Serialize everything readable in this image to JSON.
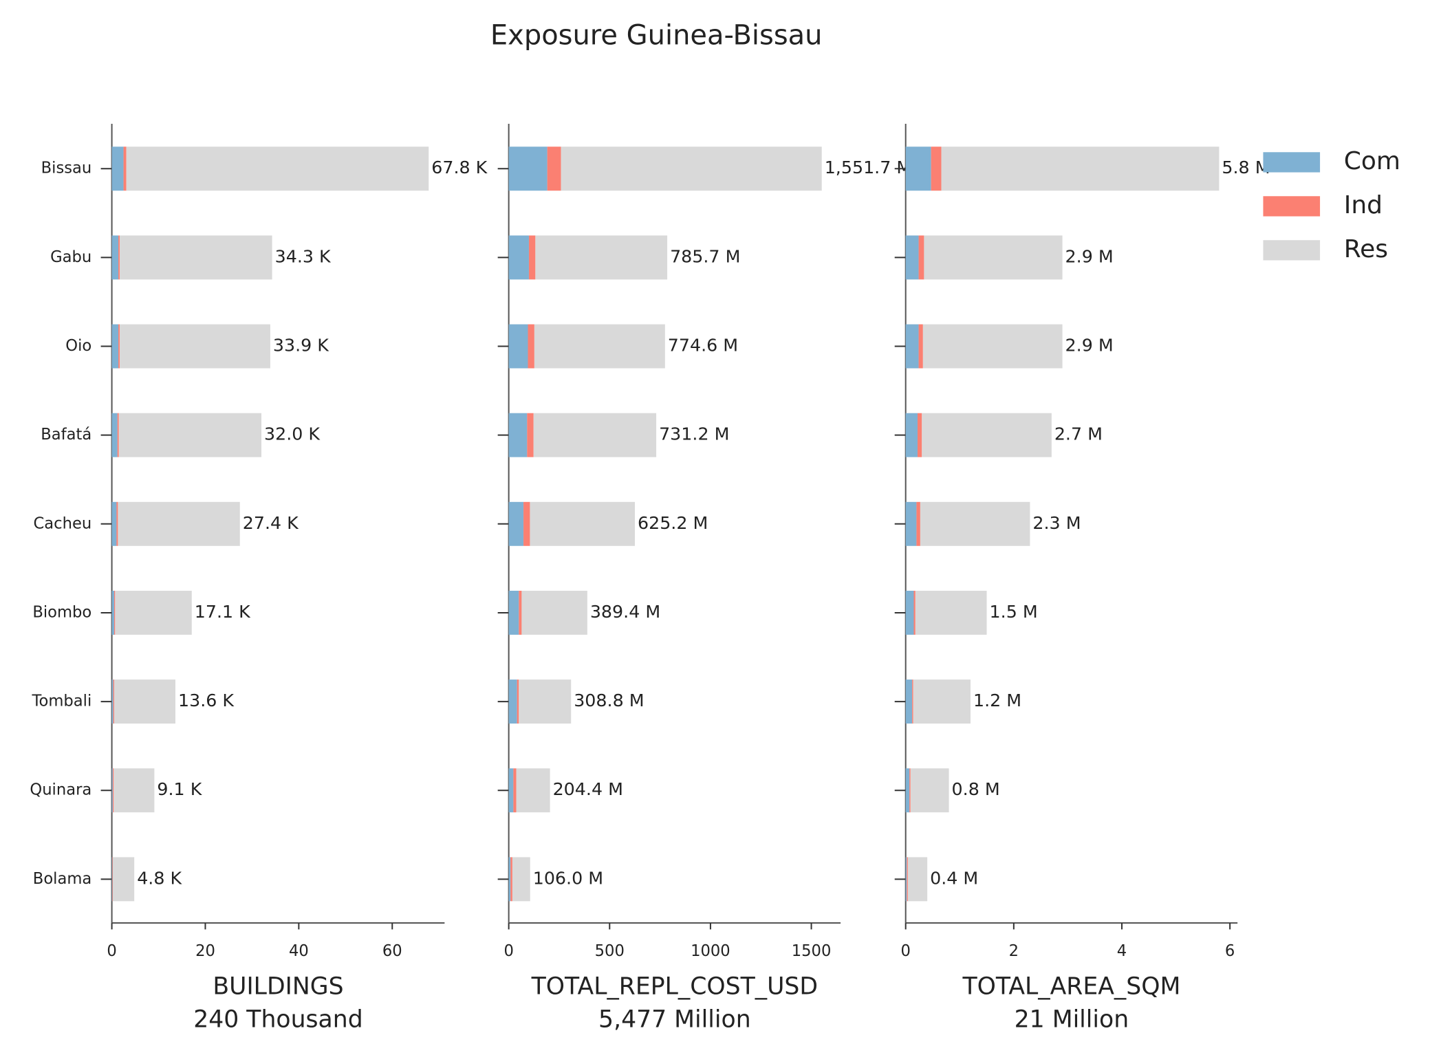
{
  "chart_data": {
    "type": "bar",
    "orientation": "horizontal",
    "stacked": true,
    "title": "Exposure Guinea-Bissau",
    "categories": [
      "Bissau",
      "Gabu",
      "Oio",
      "Bafatá",
      "Cacheu",
      "Biombo",
      "Tombali",
      "Quinara",
      "Bolama"
    ],
    "series": [
      {
        "name": "Com",
        "color": "#7fb1d3"
      },
      {
        "name": "Ind",
        "color": "#fb8072"
      },
      {
        "name": "Res",
        "color": "#d9d9d9"
      }
    ],
    "legend": "upper right",
    "panels": [
      {
        "xlabel": "BUILDINGS",
        "subtitle": "240 Thousand",
        "xlim": [
          0,
          71.2
        ],
        "xticks": [
          0,
          20,
          40,
          60
        ],
        "series_values": [
          [
            2.5,
            1.4,
            1.4,
            1.2,
            1.0,
            0.5,
            0.3,
            0.2,
            0.1
          ],
          [
            0.6,
            0.3,
            0.3,
            0.3,
            0.3,
            0.2,
            0.2,
            0.2,
            0.1
          ],
          [
            64.7,
            32.6,
            32.2,
            30.5,
            26.1,
            16.4,
            13.1,
            8.7,
            4.6
          ]
        ],
        "total_labels": [
          "67.8 K",
          "34.3 K",
          "33.9 K",
          "32.0 K",
          "27.4 K",
          "17.1 K",
          "13.6 K",
          "9.1 K",
          "4.8 K"
        ]
      },
      {
        "xlabel": "TOTAL_REPL_COST_USD",
        "subtitle": "5,477 Million",
        "xlim": [
          0,
          1645
        ],
        "xticks": [
          0,
          500,
          1000,
          1500
        ],
        "series_values": [
          [
            191,
            100,
            95,
            91,
            73,
            50,
            41,
            23,
            9
          ],
          [
            68,
            32,
            32,
            32,
            32,
            14,
            9,
            14,
            9
          ],
          [
            1292.7,
            653.7,
            647.6,
            608.2,
            520.2,
            325.4,
            258.8,
            167.4,
            88.0
          ]
        ],
        "total_labels": [
          "1,551.7 M",
          "785.7 M",
          "774.6 M",
          "731.2 M",
          "625.2 M",
          "389.4 M",
          "308.8 M",
          "204.4 M",
          "106.0 M"
        ]
      },
      {
        "xlabel": "TOTAL_AREA_SQM",
        "subtitle": "21 Million",
        "xlim": [
          0,
          6.14
        ],
        "xticks": [
          0,
          2,
          4,
          6
        ],
        "series_values": [
          [
            0.47,
            0.24,
            0.24,
            0.22,
            0.2,
            0.15,
            0.12,
            0.07,
            0.02
          ],
          [
            0.19,
            0.1,
            0.08,
            0.08,
            0.07,
            0.03,
            0.02,
            0.02,
            0.02
          ],
          [
            5.14,
            2.56,
            2.58,
            2.4,
            2.03,
            1.32,
            1.06,
            0.71,
            0.36
          ]
        ],
        "total_labels": [
          "5.8 M",
          "2.9 M",
          "2.9 M",
          "2.7 M",
          "2.3 M",
          "1.5 M",
          "1.2 M",
          "0.8 M",
          "0.4 M"
        ]
      }
    ]
  }
}
